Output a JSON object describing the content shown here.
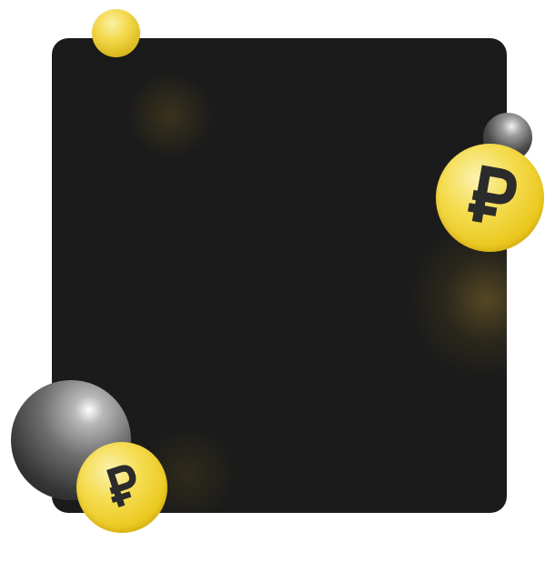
{
  "colors": {
    "page_background": "#ffffff",
    "card_background": "#1b1b1b",
    "coin_gold": "#f3d84a",
    "ruble_glyph": "#2b2b2b",
    "sphere_dark": "#3a3a3a"
  },
  "icons": {
    "coin_symbol": "ruble-sign-icon",
    "spheres": [
      "yellow-sphere",
      "dark-sphere-small",
      "dark-sphere-large"
    ]
  }
}
